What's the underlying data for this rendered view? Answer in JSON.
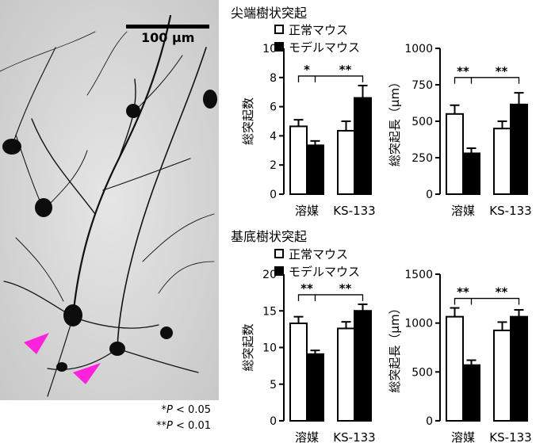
{
  "image": {
    "scale_label": "100 μm",
    "significance": {
      "single": {
        "stars": "*",
        "p": "P",
        "rest": " < 0.05"
      },
      "double": {
        "stars": "**",
        "p": "P",
        "rest": " < 0.01"
      }
    },
    "arrow_color": "#ff22dd"
  },
  "sections": [
    {
      "title": "尖端樹状突起",
      "legend": [
        "正常マウス",
        "モデルマウス"
      ]
    },
    {
      "title": "基底樹状突起",
      "legend": [
        "正常マウス",
        "モデルマウス"
      ]
    }
  ],
  "chart_data": [
    {
      "type": "bar",
      "categories": [
        "溶媒",
        "KS-133"
      ],
      "series": [
        {
          "name": "正常マウス",
          "fill": "open",
          "values": [
            4.65,
            4.35
          ],
          "errors": [
            0.45,
            0.65
          ]
        },
        {
          "name": "モデルマウス",
          "fill": "filled",
          "values": [
            3.35,
            6.6
          ],
          "errors": [
            0.3,
            0.85
          ]
        }
      ],
      "ylabel": "総突起数",
      "ylim": [
        0,
        10
      ],
      "yticks": [
        0,
        2,
        4,
        6,
        8,
        10
      ],
      "brackets": [
        {
          "label": "*"
        },
        {
          "label": "**"
        }
      ]
    },
    {
      "type": "bar",
      "categories": [
        "溶媒",
        "KS-133"
      ],
      "series": [
        {
          "name": "正常マウス",
          "fill": "open",
          "values": [
            550,
            450
          ],
          "errors": [
            60,
            50
          ]
        },
        {
          "name": "モデルマウス",
          "fill": "filled",
          "values": [
            280,
            615
          ],
          "errors": [
            35,
            80
          ]
        }
      ],
      "ylabel": "総突起長（μm）",
      "ylim": [
        0,
        1000
      ],
      "yticks": [
        0,
        250,
        500,
        750,
        1000
      ],
      "brackets": [
        {
          "label": "**"
        },
        {
          "label": "**"
        }
      ]
    },
    {
      "type": "bar",
      "categories": [
        "溶媒",
        "KS-133"
      ],
      "series": [
        {
          "name": "正常マウス",
          "fill": "open",
          "values": [
            13.3,
            12.6
          ],
          "errors": [
            0.9,
            0.9
          ]
        },
        {
          "name": "モデルマウス",
          "fill": "filled",
          "values": [
            9.1,
            15.0
          ],
          "errors": [
            0.5,
            0.9
          ]
        }
      ],
      "ylabel": "総突起数",
      "ylim": [
        0,
        20
      ],
      "yticks": [
        0,
        5,
        10,
        15,
        20
      ],
      "brackets": [
        {
          "label": "**"
        },
        {
          "label": "**"
        }
      ]
    },
    {
      "type": "bar",
      "categories": [
        "溶媒",
        "KS-133"
      ],
      "series": [
        {
          "name": "正常マウス",
          "fill": "open",
          "values": [
            1065,
            925
          ],
          "errors": [
            90,
            85
          ]
        },
        {
          "name": "モデルマウス",
          "fill": "filled",
          "values": [
            570,
            1065
          ],
          "errors": [
            50,
            70
          ]
        }
      ],
      "ylabel": "総突起長（μm）",
      "ylim": [
        0,
        1500
      ],
      "yticks": [
        0,
        500,
        1000,
        1500
      ],
      "brackets": [
        {
          "label": "**"
        },
        {
          "label": "**"
        }
      ]
    }
  ]
}
